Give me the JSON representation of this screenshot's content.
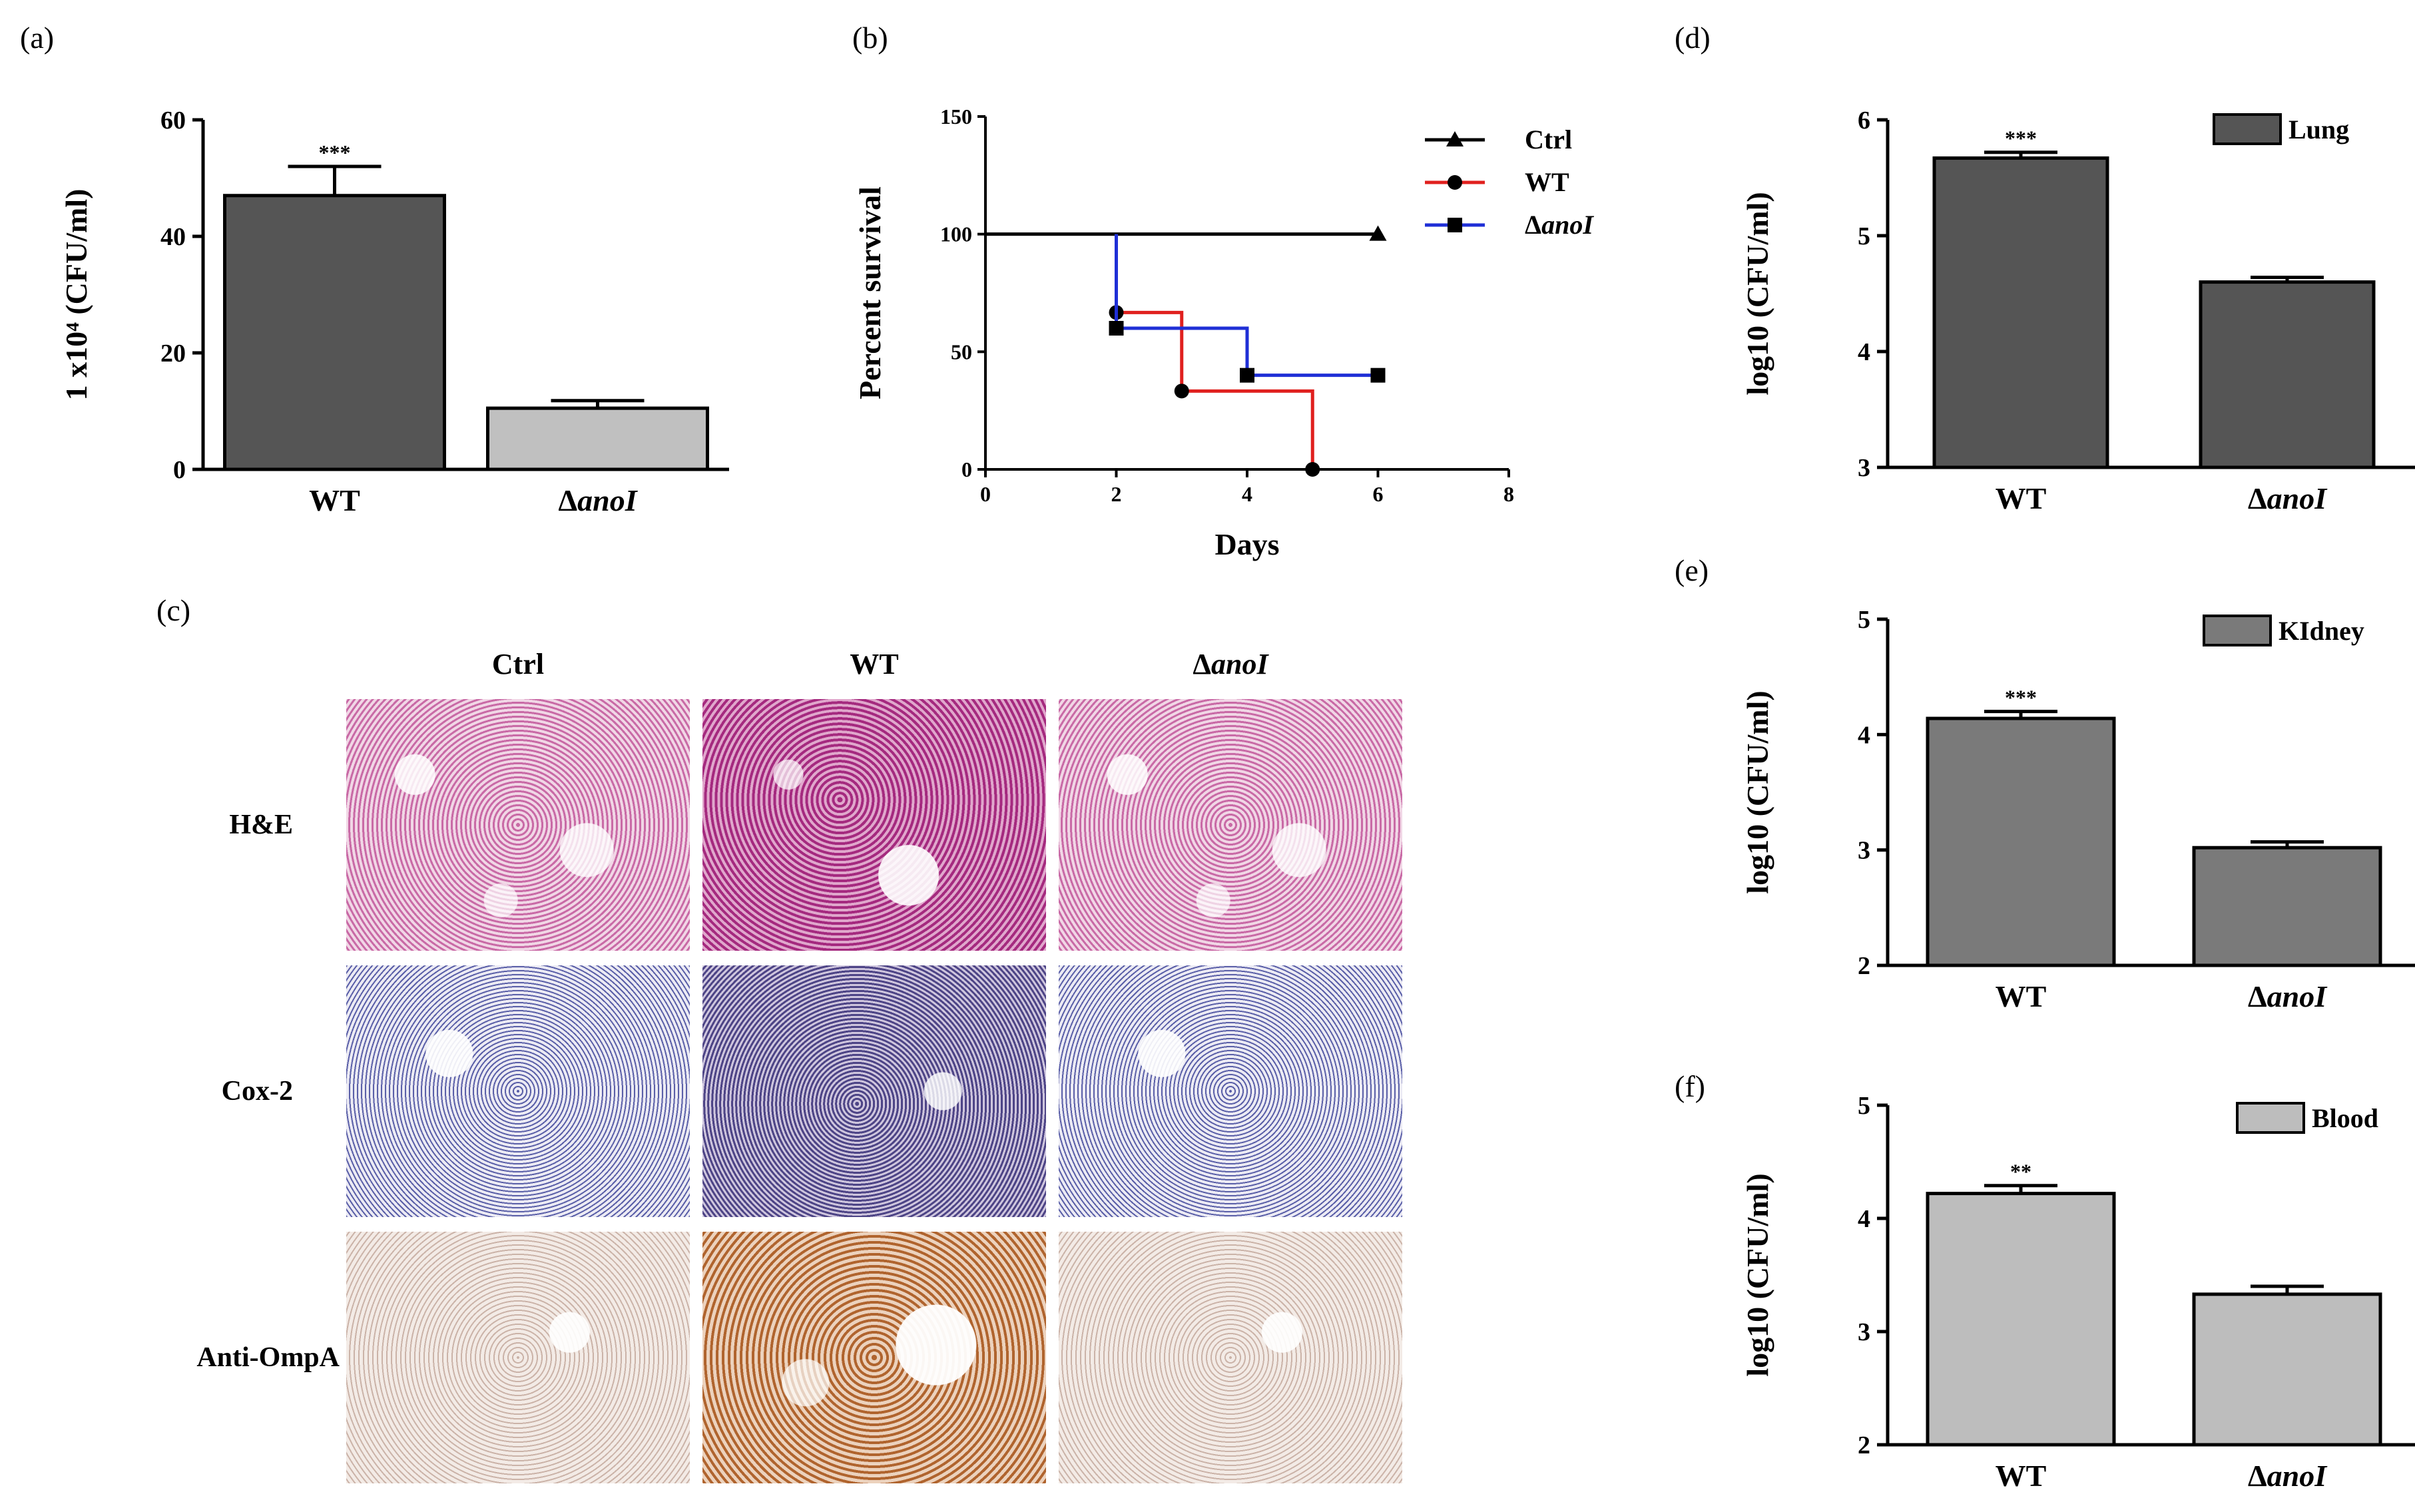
{
  "panels": {
    "a": "(a)",
    "b": "(b)",
    "c": "(c)",
    "d": "(d)",
    "e": "(e)",
    "f": "(f)"
  },
  "histology": {
    "columns": [
      {
        "plain": "Ctrl",
        "italic": ""
      },
      {
        "plain": "WT",
        "italic": ""
      },
      {
        "plain": "Δ",
        "italic": "anoI"
      }
    ],
    "rows": [
      "H&E",
      "Cox-2",
      "Anti-OmpA"
    ]
  },
  "chart_data": [
    {
      "id": "a",
      "type": "bar",
      "categories": [
        "WT",
        "ΔanoI"
      ],
      "values": [
        47,
        10.5
      ],
      "errors": [
        5,
        1.3
      ],
      "colors": [
        "#555555",
        "#c0c0c0"
      ],
      "significance": [
        "***",
        ""
      ],
      "ylabel": "1 x10⁴ (CFU/ml)",
      "ylim": [
        0,
        60
      ],
      "yticks": [
        "0",
        "20",
        "40",
        "60"
      ]
    },
    {
      "id": "b",
      "type": "line",
      "xlabel": "Days",
      "ylabel": "Percent survival",
      "xlim": [
        0,
        8
      ],
      "ylim": [
        0,
        150
      ],
      "xticks": [
        "0",
        "2",
        "4",
        "6",
        "8"
      ],
      "yticks": [
        "0",
        "50",
        "100",
        "150"
      ],
      "legend_position": "top-right",
      "series": [
        {
          "name": "Ctrl",
          "color": "#000000",
          "marker": "triangle",
          "steps": [
            [
              0,
              100
            ],
            [
              6,
              100
            ]
          ],
          "points": [
            [
              6,
              100
            ]
          ]
        },
        {
          "name": "WT",
          "color": "#e0201e",
          "marker": "circle",
          "steps": [
            [
              2,
              66.7
            ],
            [
              3,
              66.7
            ],
            [
              3,
              33.3
            ],
            [
              5,
              33.3
            ],
            [
              5,
              0
            ]
          ],
          "points": [
            [
              2,
              66.7
            ],
            [
              3,
              33.3
            ],
            [
              5,
              0
            ]
          ]
        },
        {
          "name": "ΔanoI",
          "color": "#1f2fd6",
          "marker": "square",
          "steps": [
            [
              2,
              100
            ],
            [
              2,
              60
            ],
            [
              4,
              60
            ],
            [
              4,
              40
            ],
            [
              6,
              40
            ]
          ],
          "points": [
            [
              2,
              60
            ],
            [
              4,
              40
            ],
            [
              6,
              40
            ]
          ]
        }
      ]
    },
    {
      "id": "d",
      "type": "bar",
      "categories": [
        "WT",
        "ΔanoI"
      ],
      "values": [
        5.67,
        4.6
      ],
      "errors": [
        0.05,
        0.04
      ],
      "colors": [
        "#555555",
        "#555555"
      ],
      "significance": [
        "***",
        ""
      ],
      "ylabel": "log10 (CFU/ml)",
      "ylim": [
        3,
        6
      ],
      "yticks": [
        "3",
        "4",
        "5",
        "6"
      ],
      "legend": "Lung"
    },
    {
      "id": "e",
      "type": "bar",
      "categories": [
        "WT",
        "ΔanoI"
      ],
      "values": [
        4.14,
        3.02
      ],
      "errors": [
        0.06,
        0.05
      ],
      "colors": [
        "#7a7a7a",
        "#7a7a7a"
      ],
      "significance": [
        "***",
        ""
      ],
      "ylabel": "log10 (CFU/ml)",
      "ylim": [
        2,
        5
      ],
      "yticks": [
        "2",
        "3",
        "4",
        "5"
      ],
      "legend": "KIdney"
    },
    {
      "id": "f",
      "type": "bar",
      "categories": [
        "WT",
        "ΔanoI"
      ],
      "values": [
        4.22,
        3.33
      ],
      "errors": [
        0.07,
        0.07
      ],
      "colors": [
        "#bdbdbd",
        "#bdbdbd"
      ],
      "significance": [
        "**",
        ""
      ],
      "ylabel": "log10 (CFU/ml)",
      "ylim": [
        2,
        5
      ],
      "yticks": [
        "2",
        "3",
        "4",
        "5"
      ],
      "legend": "Blood"
    }
  ]
}
